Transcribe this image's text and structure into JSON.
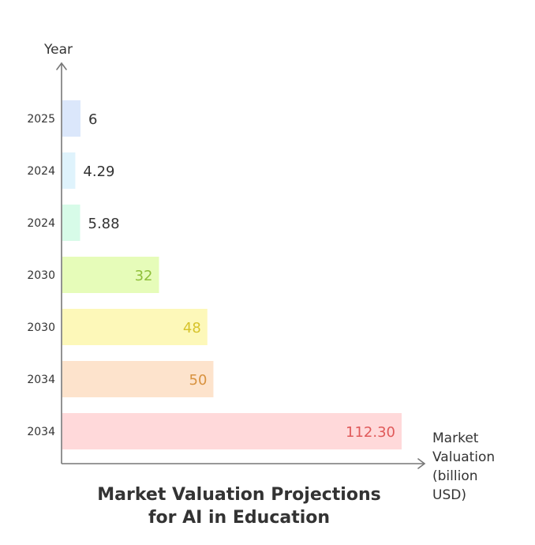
{
  "chart_data": {
    "type": "bar",
    "orientation": "horizontal",
    "title_line1": "Market Valuation Projections",
    "title_line2": "for AI in Education",
    "ylabel": "Year",
    "xlabel_lines": [
      "Market",
      "Valuation",
      "(billion",
      "USD)"
    ],
    "categories": [
      "2025",
      "2024",
      "2024",
      "2030",
      "2030",
      "2034",
      "2034"
    ],
    "values": [
      6,
      4.29,
      5.88,
      32,
      48,
      50,
      112.3
    ],
    "value_labels": [
      "6",
      "4.29",
      "5.88",
      "32",
      "48",
      "50",
      "112.30"
    ],
    "bar_colors": [
      "#dbe7fb",
      "#dff3fc",
      "#d7fbe8",
      "#e6fcb9",
      "#fdf8b9",
      "#fde3cc",
      "#ffd9da"
    ],
    "label_colors": [
      "#333333",
      "#333333",
      "#333333",
      "#8fbf3a",
      "#d6c32b",
      "#d8923f",
      "#e05a5a"
    ],
    "xlim": [
      0,
      112.3
    ],
    "grid": false
  }
}
